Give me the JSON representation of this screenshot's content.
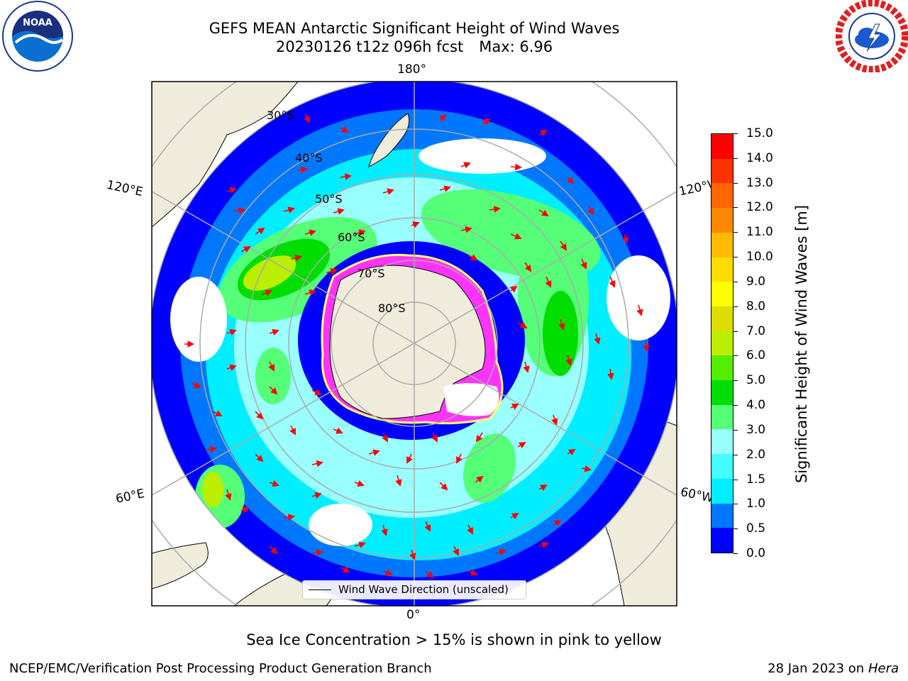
{
  "header": {
    "title_line1": "GEFS MEAN Antarctic Significant Height of Wind Waves",
    "title_line2_left": "20230126 t12z 096h fcst",
    "title_line2_right": "Max: 6.96"
  },
  "logos": {
    "left": "noaa-logo",
    "left_text": "NOAA",
    "right": "nws-logo"
  },
  "map": {
    "projection": "south-polar-stereographic",
    "lon_labels": {
      "top": "180°",
      "left_upper": "120°E",
      "right_upper": "120°W",
      "left_lower": "60°E",
      "right_lower": "60°W",
      "bottom": "0°"
    },
    "lat_labels": [
      "30°S",
      "40°S",
      "50°S",
      "60°S",
      "70°S",
      "80°S"
    ],
    "land_color": "#efecdc",
    "ocean_colors": {
      "deep_blue": "#0000ff",
      "blue": "#0066ff",
      "cyan": "#00ffff",
      "light_cyan": "#66ffff",
      "pale_cyan": "#aaffff",
      "green": "#55ee66",
      "bright_green": "#22cc22",
      "yellow_green": "#ccee00"
    },
    "arrow_color": "#ff0000",
    "ice_edge_colors": [
      "#ff33ff",
      "#ffff66"
    ]
  },
  "legend": {
    "label": "Wind Wave Direction (unscaled)"
  },
  "colorbar": {
    "label": "Significant Height of Wind Waves [m]",
    "ticks": [
      "0.0",
      "0.5",
      "1.0",
      "1.5",
      "2.0",
      "3.0",
      "4.0",
      "5.0",
      "6.0",
      "7.0",
      "8.0",
      "9.0",
      "10.0",
      "11.0",
      "12.0",
      "13.0",
      "14.0",
      "15.0"
    ],
    "colors": [
      "#0000ff",
      "#0077ff",
      "#00eeff",
      "#44ffff",
      "#99ffff",
      "#55ff77",
      "#00dd00",
      "#55ee00",
      "#bbee00",
      "#dddd00",
      "#ffff00",
      "#ffdd00",
      "#ffbb00",
      "#ff8800",
      "#ff6600",
      "#ff3300",
      "#ff0000"
    ]
  },
  "seaice_note": "Sea Ice Concentration > 15% is shown in pink to yellow",
  "footer": {
    "left": "NCEP/EMC/Verification Post Processing Product Generation Branch",
    "right_date": "28 Jan 2023 on",
    "right_host": "Hera"
  }
}
